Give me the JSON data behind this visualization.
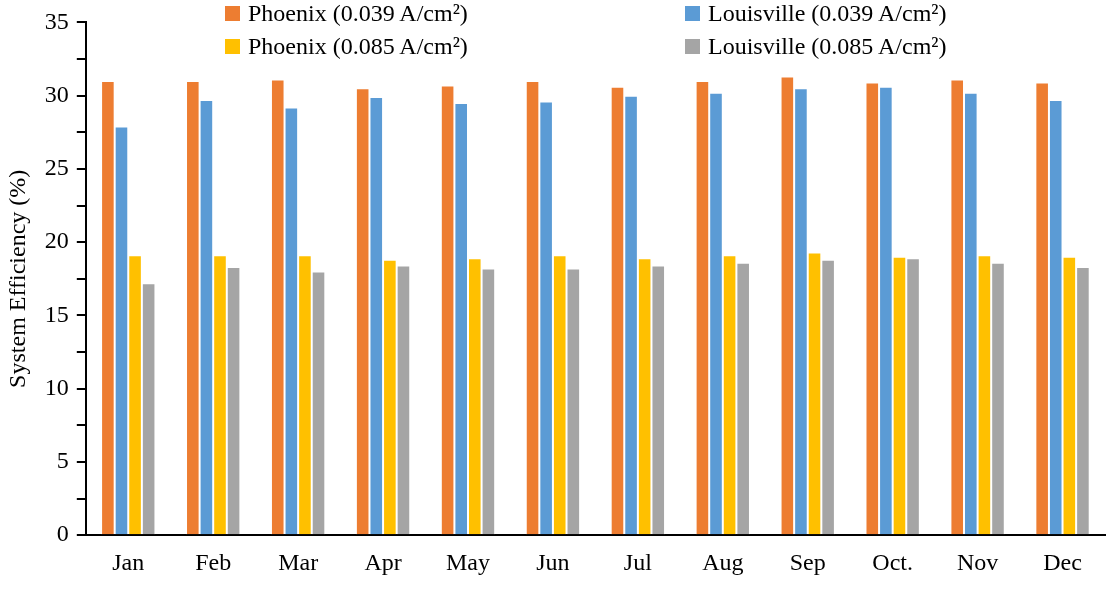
{
  "chart_data": {
    "type": "bar",
    "ylabel": "System Efficiency (%)",
    "categories": [
      "Jan",
      "Feb",
      "Mar",
      "Apr",
      "May",
      "Jun",
      "Jul",
      "Aug",
      "Sep",
      "Oct.",
      "Nov",
      "Dec"
    ],
    "series": [
      {
        "name": "Phoenix (0.039 A/cm²)",
        "color": "#ed7d31",
        "values": [
          31.0,
          31.0,
          31.1,
          30.5,
          30.7,
          31.0,
          30.6,
          31.0,
          31.3,
          30.9,
          31.1,
          30.9
        ]
      },
      {
        "name": "Louisville (0.039 A/cm²)",
        "color": "#5b9bd5",
        "values": [
          27.9,
          29.7,
          29.2,
          29.9,
          29.5,
          29.6,
          30.0,
          30.2,
          30.5,
          30.6,
          30.2,
          29.7
        ]
      },
      {
        "name": "Phoenix (0.085 A/cm²)",
        "color": "#ffc000",
        "values": [
          19.1,
          19.1,
          19.1,
          18.8,
          18.9,
          19.1,
          18.9,
          19.1,
          19.3,
          19.0,
          19.1,
          19.0
        ]
      },
      {
        "name": "Louisville (0.085 A/cm²)",
        "color": "#a5a5a5",
        "values": [
          17.2,
          18.3,
          18.0,
          18.4,
          18.2,
          18.2,
          18.4,
          18.6,
          18.8,
          18.9,
          18.6,
          18.3
        ]
      }
    ],
    "ylim": [
      0,
      35
    ],
    "yticks": [
      0,
      {
        "value": 2.5,
        "label": null
      },
      5,
      {
        "value": 7.5,
        "label": null
      },
      10,
      {
        "value": 12.5,
        "label": null
      },
      15,
      {
        "value": 17.5,
        "label": null
      },
      20,
      {
        "value": 22.5,
        "label": null
      },
      25,
      {
        "value": 27.5,
        "label": null
      },
      30,
      {
        "value": 32.5,
        "label": null
      },
      35
    ],
    "grid": false,
    "legend": "top right"
  }
}
